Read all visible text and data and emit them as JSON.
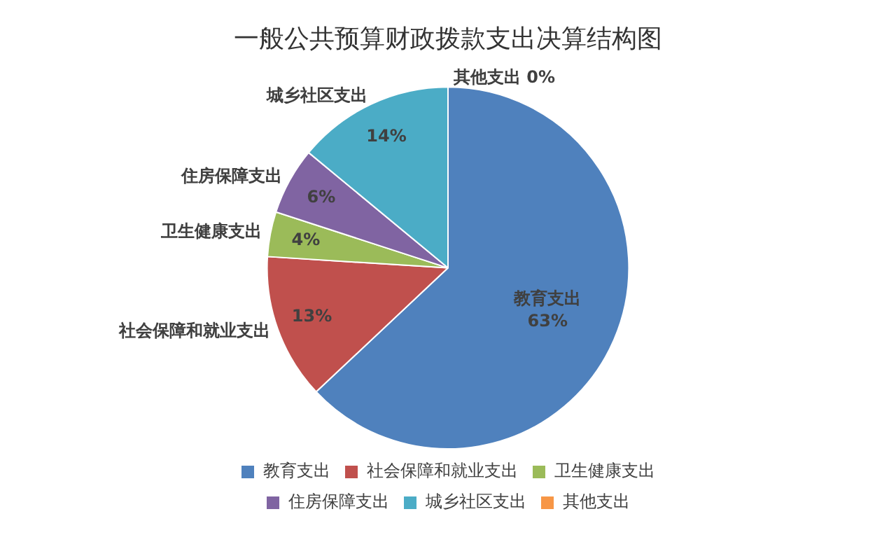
{
  "chart_data": {
    "type": "pie",
    "title": "一般公共预算财政拨款支出决算结构图",
    "categories": [
      "教育支出",
      "社会保障和就业支出",
      "卫生健康支出",
      "住房保障支出",
      "城乡社区支出",
      "其他支出"
    ],
    "values": [
      63,
      13,
      4,
      6,
      14,
      0
    ],
    "colors": [
      "#4f81bd",
      "#c0504d",
      "#9bbb59",
      "#8064a2",
      "#4bacc6",
      "#f79646"
    ],
    "value_labels": [
      "63%",
      "13%",
      "4%",
      "6%",
      "14%",
      "0%"
    ],
    "legend": "bottom"
  }
}
